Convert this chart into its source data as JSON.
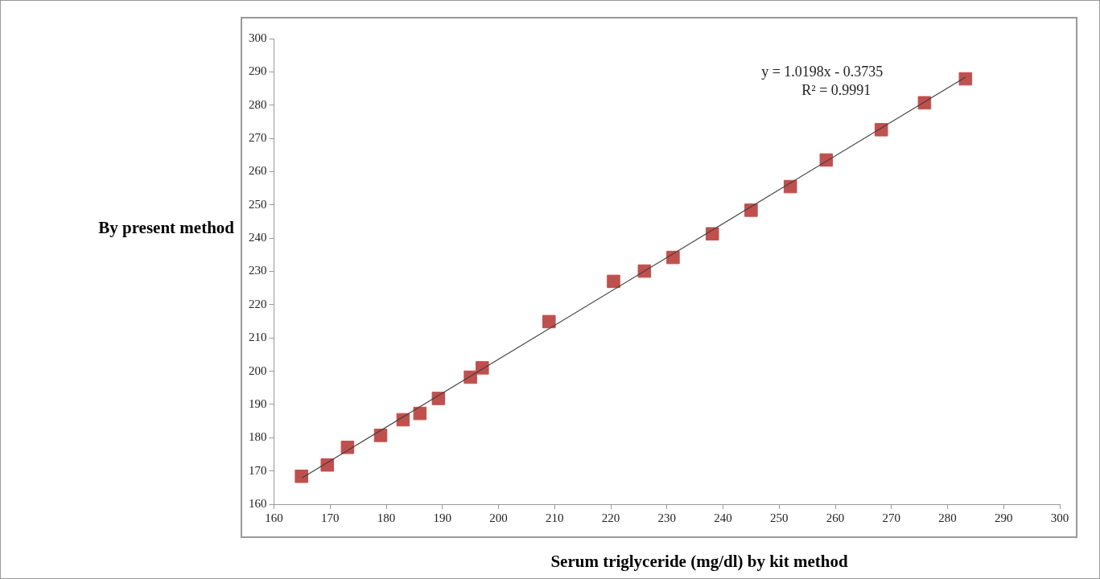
{
  "chart_data": {
    "type": "scatter",
    "xlabel": "Serum triglyceride (mg/dl) by kit method",
    "ylabel": "By present method",
    "xlim": [
      160,
      300
    ],
    "xticks": [
      160,
      170,
      180,
      190,
      200,
      210,
      220,
      230,
      240,
      250,
      260,
      270,
      280,
      290,
      300
    ],
    "ylim": [
      160,
      300
    ],
    "yticks": [
      160,
      170,
      180,
      190,
      200,
      210,
      220,
      230,
      240,
      250,
      260,
      270,
      280,
      290,
      300
    ],
    "marker": "square",
    "series": [
      {
        "color": "#c0504d",
        "x": [
          164.9,
          169.5,
          173.1,
          179,
          183,
          186,
          189.3,
          195,
          197.1,
          209,
          220.5,
          226,
          231.1,
          238.1,
          245,
          252,
          258.4,
          268.2,
          275.9,
          283.2
        ],
        "values": [
          168.4,
          171.8,
          177.1,
          180.7,
          185.4,
          187.3,
          191.8,
          198.2,
          201,
          214.9,
          227,
          230.1,
          234.2,
          241.3,
          248.4,
          255.5,
          263.5,
          272.6,
          280.7,
          287.9
        ]
      },
      {
        "type": "line",
        "color": "#404040",
        "marker": "none",
        "x": [
          165,
          283.2
        ],
        "values": [
          167.9,
          288.4
        ]
      }
    ],
    "annotations": [
      "y = 1.0198x - 0.3735",
      "R² = 0.9991"
    ]
  }
}
